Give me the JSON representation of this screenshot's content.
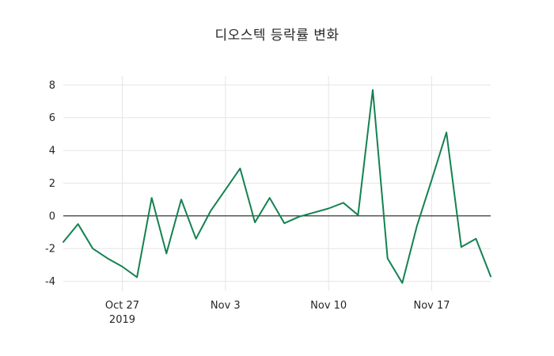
{
  "page": {
    "background": "#ffffff"
  },
  "chart_data": {
    "type": "line",
    "title": "디오스텍 등락률 변화",
    "xlabel": "",
    "ylabel": "",
    "legend": "none",
    "grid": true,
    "line_color": "#148250",
    "grid_color": "#e5e5e5",
    "zero_line_color": "#000000",
    "text_color": "#262626",
    "ylim": [
      -4.6,
      8.55
    ],
    "y_ticks": [
      -4,
      -2,
      0,
      2,
      4,
      6,
      8
    ],
    "x_ticks": [
      {
        "index": 4,
        "label": "Oct 27",
        "sublabel": "2019"
      },
      {
        "index": 11,
        "label": "Nov 3"
      },
      {
        "index": 18,
        "label": "Nov 10"
      },
      {
        "index": 25,
        "label": "Nov 17"
      }
    ],
    "values": [
      -1.6,
      -0.5,
      -2.0,
      -2.6,
      -3.1,
      -3.75,
      1.1,
      -2.3,
      1.0,
      -1.4,
      0.3,
      1.6,
      2.9,
      -0.4,
      1.1,
      -0.45,
      -0.05,
      0.2,
      0.45,
      0.8,
      0.05,
      7.7,
      -2.6,
      -4.1,
      -0.6,
      2.2,
      5.1,
      -1.9,
      -1.4,
      -3.7
    ]
  }
}
